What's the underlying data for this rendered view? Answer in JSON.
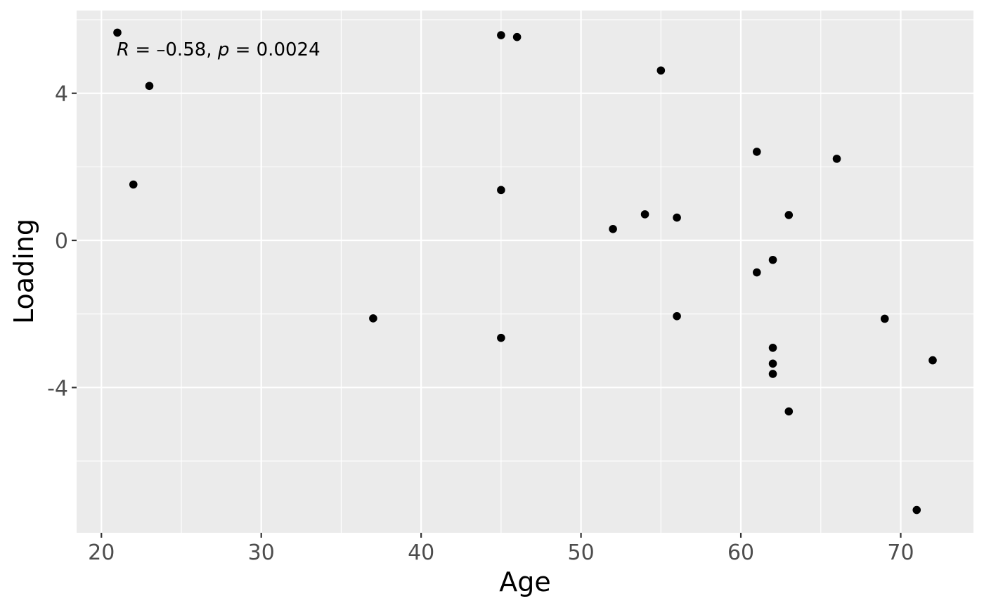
{
  "chart_data": {
    "type": "scatter",
    "title": "",
    "xlabel": "Age",
    "ylabel": "Loading",
    "xlim": [
      18.45,
      74.55
    ],
    "ylim": [
      -7.95,
      6.25
    ],
    "x_ticks": [
      20,
      30,
      40,
      50,
      60,
      70
    ],
    "x_tick_labels": [
      "20",
      "30",
      "40",
      "50",
      "60",
      "70"
    ],
    "y_ticks": [
      -4,
      0,
      4
    ],
    "y_tick_labels": [
      "-4",
      "0",
      "4"
    ],
    "grid": true,
    "legend": "none",
    "panel_background": "#ebebeb",
    "grid_color": "#ffffff",
    "point_color": "#000000",
    "annotation": {
      "R_symbol": "R",
      "R_text": " = –0.58, ",
      "p_symbol": "p",
      "p_text": " = 0.0024"
    },
    "series": [
      {
        "points": [
          {
            "x": 21,
            "y": 5.65
          },
          {
            "x": 22,
            "y": 1.52
          },
          {
            "x": 23,
            "y": 4.2
          },
          {
            "x": 37,
            "y": -2.12
          },
          {
            "x": 45,
            "y": 5.58
          },
          {
            "x": 45,
            "y": 1.37
          },
          {
            "x": 45,
            "y": -2.65
          },
          {
            "x": 46,
            "y": 5.53
          },
          {
            "x": 52,
            "y": 0.31
          },
          {
            "x": 54,
            "y": 0.71
          },
          {
            "x": 55,
            "y": 4.62
          },
          {
            "x": 56,
            "y": 0.62
          },
          {
            "x": 56,
            "y": -2.06
          },
          {
            "x": 61,
            "y": 2.41
          },
          {
            "x": 61,
            "y": -0.87
          },
          {
            "x": 62,
            "y": -0.53
          },
          {
            "x": 62,
            "y": -2.92
          },
          {
            "x": 62,
            "y": -3.35
          },
          {
            "x": 62,
            "y": -3.63
          },
          {
            "x": 63,
            "y": 0.69
          },
          {
            "x": 63,
            "y": -4.65
          },
          {
            "x": 66,
            "y": 2.22
          },
          {
            "x": 69,
            "y": -2.13
          },
          {
            "x": 71,
            "y": -7.33
          },
          {
            "x": 72,
            "y": -3.26
          }
        ]
      }
    ]
  }
}
